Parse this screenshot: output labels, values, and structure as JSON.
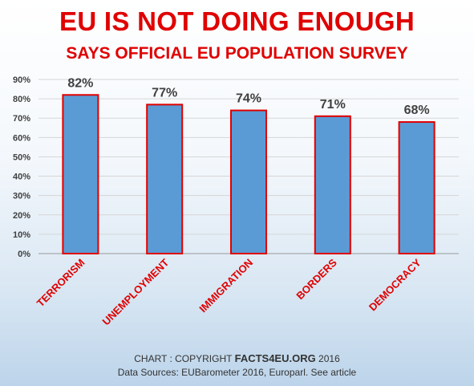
{
  "chart_data": {
    "type": "bar",
    "title": "EU IS NOT DOING ENOUGH",
    "subtitle": "SAYS OFFICIAL EU POPULATION SURVEY",
    "categories": [
      "TERRORISM",
      "UNEMPLOYMENT",
      "IMMIGRATION",
      "BORDERS",
      "DEMOCRACY"
    ],
    "values": [
      82,
      77,
      74,
      71,
      68
    ],
    "data_labels": [
      "82%",
      "77%",
      "74%",
      "71%",
      "68%"
    ],
    "yticks": [
      "0%",
      "10%",
      "20%",
      "30%",
      "40%",
      "50%",
      "60%",
      "70%",
      "80%",
      "90%"
    ],
    "ylim": [
      0,
      90
    ],
    "xlabel": "",
    "ylabel": "",
    "grid": true,
    "legend": "none",
    "colors": {
      "bar_fill": "#5b9bd5",
      "bar_border": "#e00000",
      "category_labels": "#e00000",
      "title": "#e00000"
    }
  },
  "footer": {
    "line1_prefix": "CHART : COPYRIGHT ",
    "line1_site": "FACTS4EU.ORG",
    "line1_suffix": " 2016",
    "line2": "Data Sources: EUBarometer 2016, Europarl.  See article"
  }
}
